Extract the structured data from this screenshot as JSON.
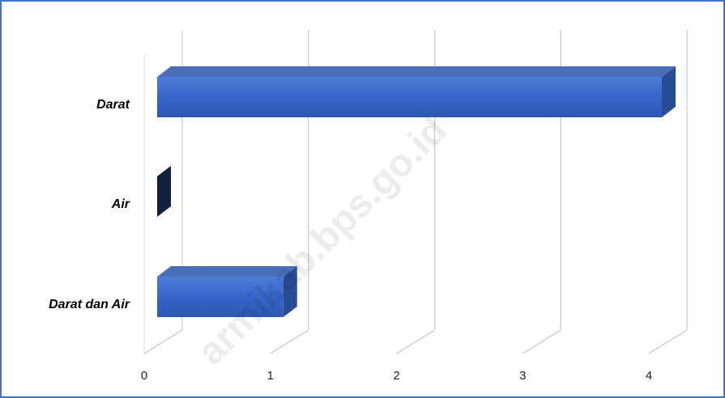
{
  "chart_data": {
    "type": "bar3d_horizontal",
    "categories": [
      "Darat",
      "Air",
      "Darat dan Air"
    ],
    "values": [
      4,
      0,
      1
    ],
    "color": "#3a68c8",
    "xlim": [
      0,
      4
    ],
    "xticks": [
      0,
      1,
      2,
      3,
      4
    ],
    "grid": true,
    "watermark": "armikab.bps.go.id"
  }
}
